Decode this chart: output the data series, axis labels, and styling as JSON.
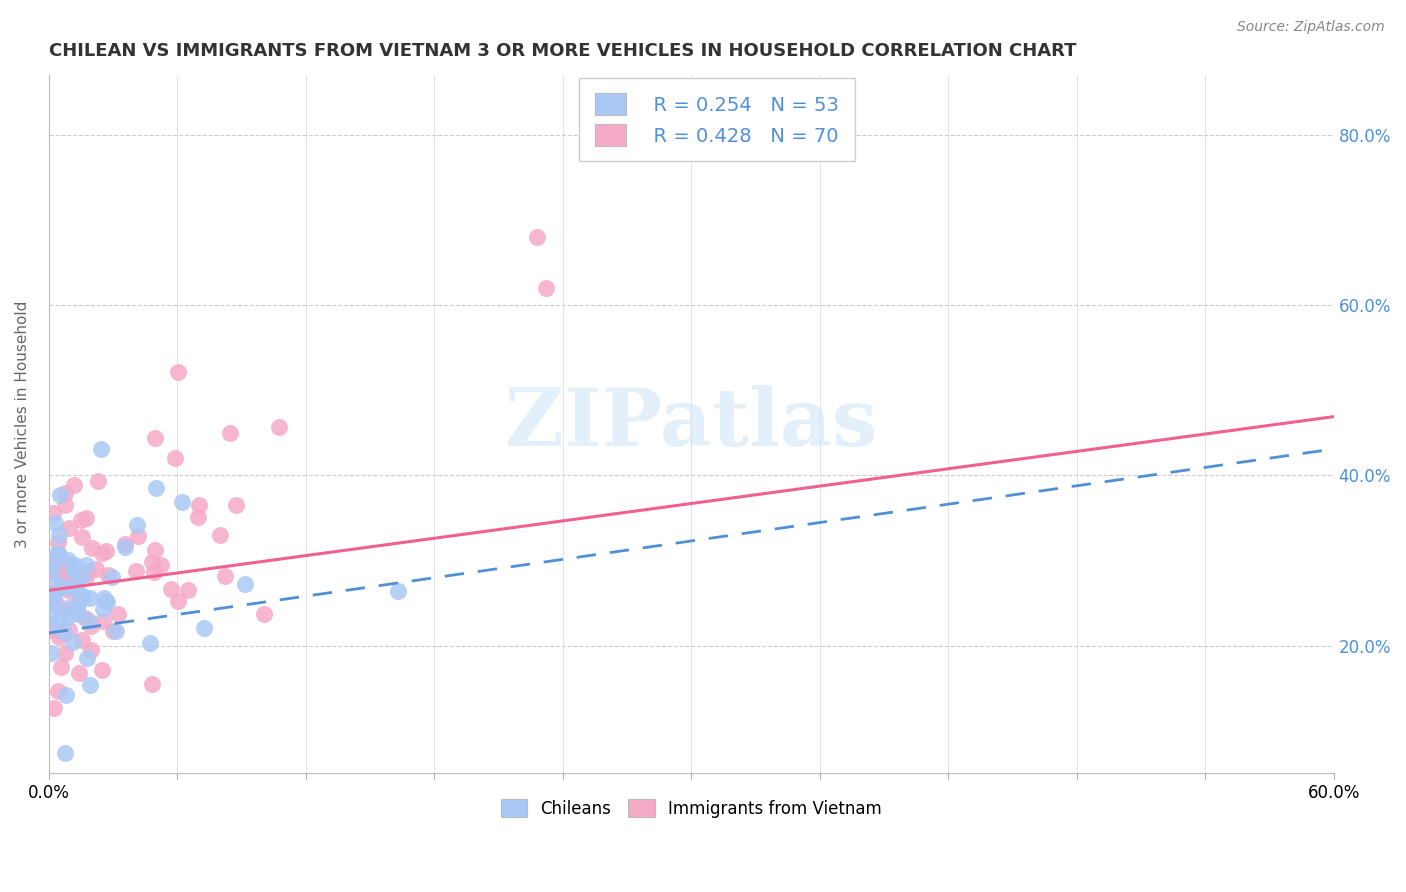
{
  "title": "CHILEAN VS IMMIGRANTS FROM VIETNAM 3 OR MORE VEHICLES IN HOUSEHOLD CORRELATION CHART",
  "source": "Source: ZipAtlas.com",
  "ylabel": "3 or more Vehicles in Household",
  "xlim": [
    0.0,
    0.6
  ],
  "ylim": [
    0.05,
    0.87
  ],
  "xtick_positions": [
    0.0,
    0.06,
    0.12,
    0.18,
    0.24,
    0.3,
    0.36,
    0.42,
    0.48,
    0.54,
    0.6
  ],
  "xtick_labels_show": [
    "0.0%",
    "",
    "",
    "",
    "",
    "",
    "",
    "",
    "",
    "",
    "60.0%"
  ],
  "yticks_right": [
    0.2,
    0.4,
    0.6,
    0.8
  ],
  "ytick_right_labels": [
    "20.0%",
    "40.0%",
    "60.0%",
    "80.0%"
  ],
  "legend_r1": "R = 0.254",
  "legend_n1": "N = 53",
  "legend_r2": "R = 0.428",
  "legend_n2": "N = 70",
  "chilean_scatter_color": "#aac8f5",
  "vietnam_scatter_color": "#f5aac8",
  "chilean_line_color": "#5090d8",
  "vietnam_line_color": "#f06090",
  "right_tick_color": "#5090d8",
  "watermark_color": "#cce4f5",
  "title_color": "#333333",
  "grid_color": "#cccccc",
  "source_color": "#888888",
  "chilean_R": 0.254,
  "vietnam_R": 0.428,
  "chilean_N": 53,
  "vietnam_N": 70,
  "chile_intercept": 0.22,
  "chile_slope": 0.37,
  "viet_intercept": 0.26,
  "viet_slope": 0.38
}
